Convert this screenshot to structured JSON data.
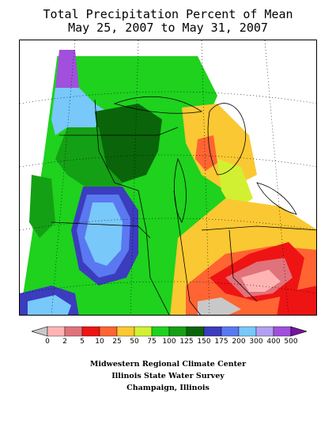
{
  "title_line1": "Total Precipitation Percent of Mean",
  "title_line2": "May 25, 2007 to May 31, 2007",
  "legend": {
    "labels": [
      "0",
      "2",
      "5",
      "10",
      "25",
      "50",
      "75",
      "100",
      "125",
      "150",
      "175",
      "200",
      "300",
      "400",
      "500"
    ],
    "colors": [
      "#c8c8c8",
      "#ffb4b4",
      "#e0727a",
      "#ee1414",
      "#ff6432",
      "#fac832",
      "#d2f032",
      "#1ed21e",
      "#14a014",
      "#0a640a",
      "#3c3cbe",
      "#5a78f0",
      "#78c8fa",
      "#b4a0f0",
      "#a050dc",
      "#7814a0"
    ]
  },
  "credits": {
    "line1": "Midwestern Regional Climate Center",
    "line2": "Illinois State Water Survey",
    "line3": "Champaign, Illinois"
  }
}
